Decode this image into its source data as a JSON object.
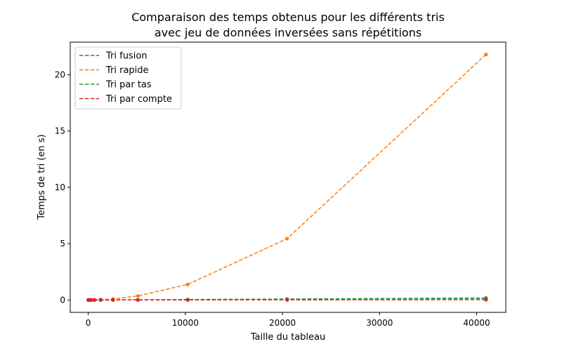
{
  "chart_data": {
    "type": "line",
    "title_lines": [
      "Comparaison des temps obtenus pour les différents tris",
      "avec jeu de données inversées sans répétitions"
    ],
    "xlabel": "Taille du tableau",
    "ylabel": "Temps de tri (en s)",
    "xlim": [
      -1850,
      43000
    ],
    "ylim": [
      -1.1,
      22.9
    ],
    "xticks": [
      0,
      10000,
      20000,
      30000,
      40000
    ],
    "xtick_labels": [
      "0",
      "10000",
      "20000",
      "30000",
      "40000"
    ],
    "yticks": [
      0,
      5,
      10,
      15,
      20
    ],
    "ytick_labels": [
      "0",
      "5",
      "10",
      "15",
      "20"
    ],
    "grid": false,
    "legend_position": "top-left",
    "x": [
      10,
      20,
      40,
      80,
      160,
      320,
      640,
      1280,
      2560,
      5120,
      10240,
      20480,
      40960
    ],
    "series": [
      {
        "name": "Tri fusion",
        "color": "#1f77b4",
        "values": [
          0,
          0,
          0,
          0,
          0,
          0.001,
          0.002,
          0.004,
          0.008,
          0.017,
          0.035,
          0.073,
          0.15
        ]
      },
      {
        "name": "Tri rapide",
        "color": "#ff7f0e",
        "values": [
          0,
          0,
          0,
          0,
          0.001,
          0.004,
          0.015,
          0.05,
          0.09,
          0.36,
          1.38,
          5.45,
          21.8
        ]
      },
      {
        "name": "Tri par tas",
        "color": "#2ca02c",
        "values": [
          0,
          0,
          0,
          0,
          0,
          0.001,
          0.002,
          0.004,
          0.009,
          0.019,
          0.04,
          0.085,
          0.18
        ]
      },
      {
        "name": "Tri par compte",
        "color": "#d62728",
        "values": [
          0,
          0,
          0,
          0,
          0,
          0,
          0.001,
          0.001,
          0.002,
          0.004,
          0.008,
          0.016,
          0.03
        ]
      }
    ]
  }
}
